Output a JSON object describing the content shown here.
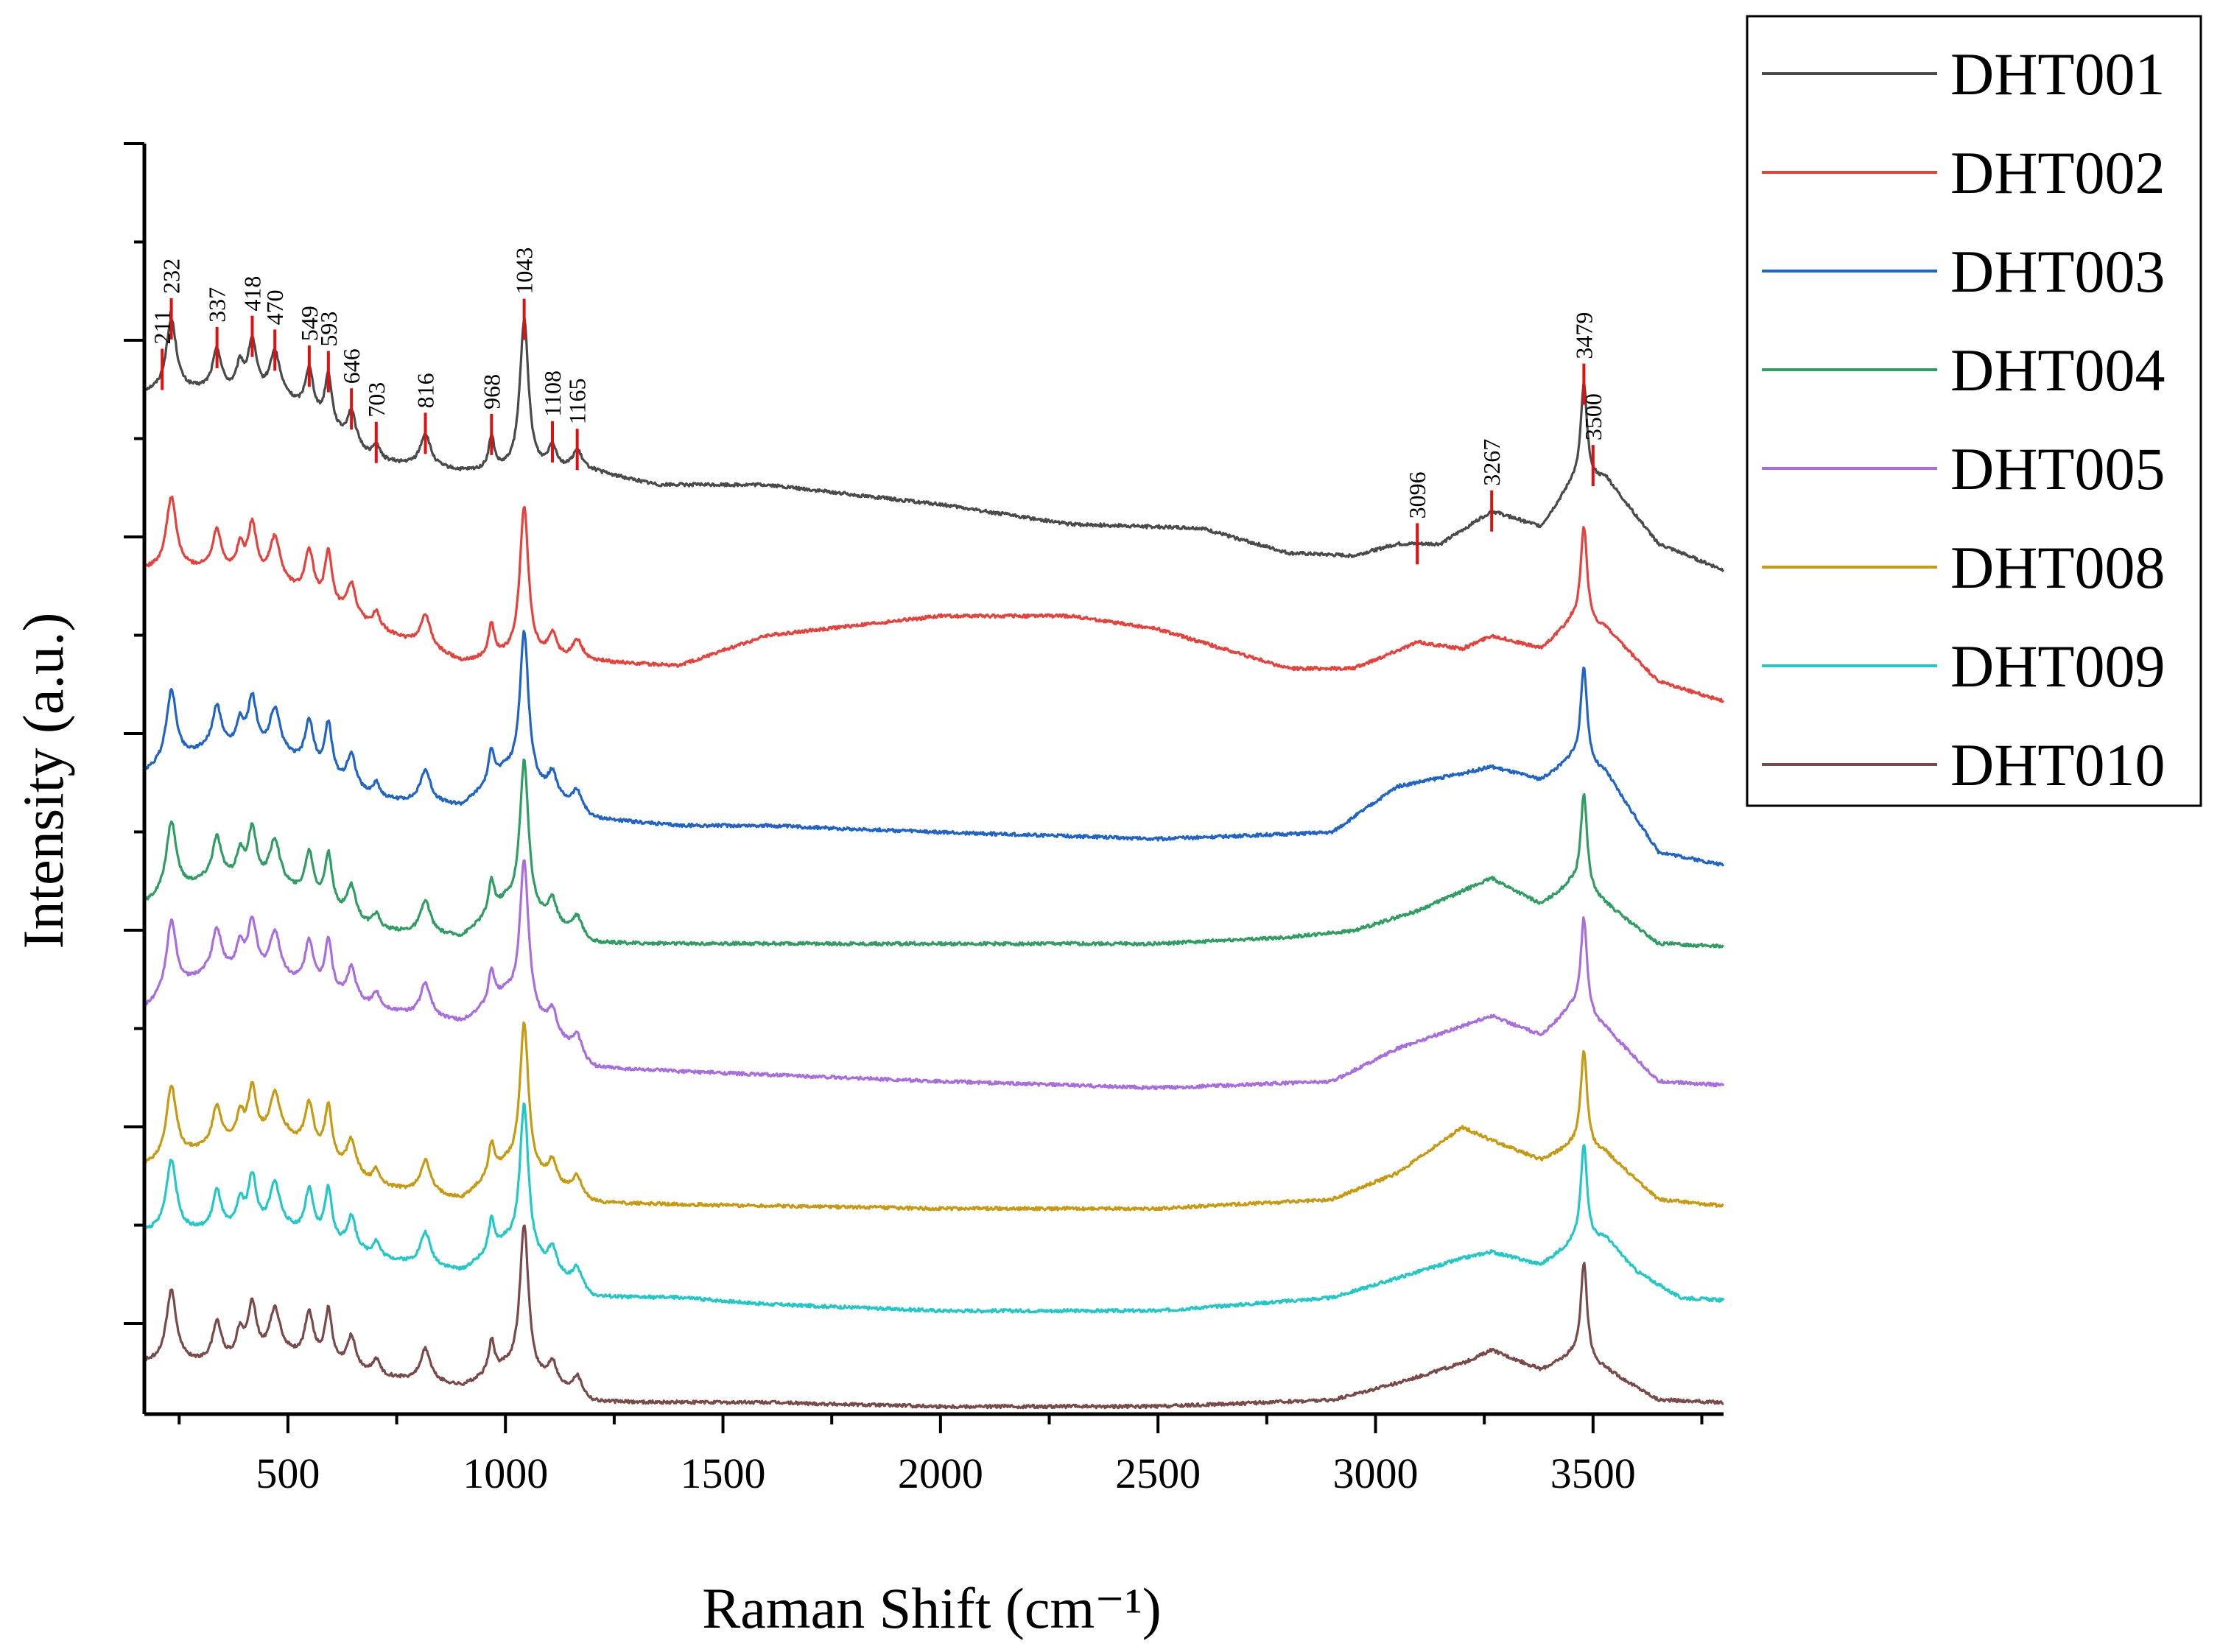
{
  "chart_data": {
    "type": "line",
    "title": "",
    "xlabel": "Raman Shift (cm⁻¹)",
    "ylabel": "Intensity (a.u.)",
    "xlim": [
      170,
      3800
    ],
    "x_ticks": [
      500,
      1000,
      1500,
      2000,
      2500,
      3000,
      3500
    ],
    "x_tick_labels": [
      "500",
      "1000",
      "1500",
      "2000",
      "2500",
      "3000",
      "3500"
    ],
    "y_ticks_shown": false,
    "grid": false,
    "legend_position": "outside-right-top",
    "series": [
      {
        "name": "DHT001",
        "color": "#4a4a4a",
        "offset": 7.3,
        "baseline": [
          [
            170,
            0.6
          ],
          [
            330,
            0.62
          ],
          [
            500,
            0.52
          ],
          [
            700,
            0.08
          ],
          [
            900,
            0.0
          ],
          [
            1200,
            0.0
          ],
          [
            1350,
            -0.1
          ],
          [
            1600,
            -0.1
          ],
          [
            2000,
            -0.25
          ],
          [
            2300,
            -0.4
          ],
          [
            2600,
            -0.43
          ],
          [
            2800,
            -0.62
          ],
          [
            2950,
            -0.64
          ],
          [
            3050,
            -0.55
          ],
          [
            3150,
            -0.55
          ],
          [
            3267,
            -0.3
          ],
          [
            3380,
            -0.42
          ],
          [
            3450,
            -0.1
          ],
          [
            3530,
            -0.05
          ],
          [
            3650,
            -0.55
          ],
          [
            3800,
            -0.75
          ]
        ]
      },
      {
        "name": "DHT002",
        "color": "#e8403a",
        "offset": 6.0,
        "baseline": [
          [
            170,
            0.55
          ],
          [
            330,
            0.55
          ],
          [
            500,
            0.4
          ],
          [
            700,
            0.1
          ],
          [
            900,
            -0.15
          ],
          [
            1000,
            -0.12
          ],
          [
            1200,
            -0.15
          ],
          [
            1400,
            -0.18
          ],
          [
            1600,
            0.05
          ],
          [
            2000,
            0.2
          ],
          [
            2300,
            0.2
          ],
          [
            2500,
            0.1
          ],
          [
            2800,
            -0.2
          ],
          [
            2950,
            -0.2
          ],
          [
            3096,
            0.0
          ],
          [
            3200,
            -0.05
          ],
          [
            3267,
            0.05
          ],
          [
            3380,
            -0.05
          ],
          [
            3450,
            0.15
          ],
          [
            3530,
            0.1
          ],
          [
            3650,
            -0.3
          ],
          [
            3800,
            -0.45
          ]
        ]
      },
      {
        "name": "DHT003",
        "color": "#1f64c8",
        "offset": 5.0,
        "baseline": [
          [
            170,
            0.0
          ],
          [
            330,
            0.2
          ],
          [
            500,
            0.1
          ],
          [
            700,
            -0.2
          ],
          [
            900,
            -0.25
          ],
          [
            1000,
            0.0
          ],
          [
            1200,
            -0.35
          ],
          [
            1400,
            -0.4
          ],
          [
            1600,
            -0.4
          ],
          [
            2000,
            -0.45
          ],
          [
            2500,
            -0.5
          ],
          [
            2900,
            -0.45
          ],
          [
            3050,
            -0.1
          ],
          [
            3200,
            0.0
          ],
          [
            3267,
            0.05
          ],
          [
            3380,
            -0.05
          ],
          [
            3450,
            0.1
          ],
          [
            3530,
            0.0
          ],
          [
            3650,
            -0.6
          ],
          [
            3800,
            -0.7
          ]
        ]
      },
      {
        "name": "DHT004",
        "color": "#2e9e62",
        "offset": 4.0,
        "baseline": [
          [
            170,
            0.0
          ],
          [
            330,
            0.2
          ],
          [
            500,
            0.1
          ],
          [
            700,
            -0.2
          ],
          [
            900,
            -0.25
          ],
          [
            1000,
            0.0
          ],
          [
            1200,
            -0.3
          ],
          [
            1600,
            -0.3
          ],
          [
            2000,
            -0.3
          ],
          [
            2500,
            -0.3
          ],
          [
            2800,
            -0.25
          ],
          [
            2950,
            -0.2
          ],
          [
            3096,
            -0.05
          ],
          [
            3267,
            0.2
          ],
          [
            3380,
            0.0
          ],
          [
            3450,
            0.15
          ],
          [
            3530,
            0.0
          ],
          [
            3650,
            -0.3
          ],
          [
            3800,
            -0.32
          ]
        ]
      },
      {
        "name": "DHT005",
        "color": "#a86ee0",
        "offset": 3.2,
        "baseline": [
          [
            170,
            0.0
          ],
          [
            330,
            0.3
          ],
          [
            500,
            0.2
          ],
          [
            700,
            0.0
          ],
          [
            900,
            -0.1
          ],
          [
            1000,
            0.1
          ],
          [
            1200,
            -0.45
          ],
          [
            1600,
            -0.5
          ],
          [
            2000,
            -0.55
          ],
          [
            2500,
            -0.6
          ],
          [
            2900,
            -0.55
          ],
          [
            3050,
            -0.3
          ],
          [
            3267,
            -0.05
          ],
          [
            3380,
            -0.2
          ],
          [
            3450,
            0.0
          ],
          [
            3530,
            -0.15
          ],
          [
            3650,
            -0.55
          ],
          [
            3800,
            -0.58
          ]
        ]
      },
      {
        "name": "DHT008",
        "color": "#c89a10",
        "offset": 2.0,
        "baseline": [
          [
            170,
            0.0
          ],
          [
            330,
            0.15
          ],
          [
            500,
            0.2
          ],
          [
            700,
            -0.15
          ],
          [
            900,
            -0.25
          ],
          [
            1000,
            0.0
          ],
          [
            1200,
            -0.28
          ],
          [
            1600,
            -0.3
          ],
          [
            2000,
            -0.32
          ],
          [
            2500,
            -0.32
          ],
          [
            2900,
            -0.25
          ],
          [
            3050,
            -0.05
          ],
          [
            3200,
            0.3
          ],
          [
            3267,
            0.2
          ],
          [
            3380,
            0.05
          ],
          [
            3450,
            0.15
          ],
          [
            3530,
            0.1
          ],
          [
            3650,
            -0.25
          ],
          [
            3800,
            -0.3
          ]
        ]
      },
      {
        "name": "DHT009",
        "color": "#22c8c8",
        "offset": 1.5,
        "baseline": [
          [
            170,
            0.0
          ],
          [
            330,
            0.0
          ],
          [
            500,
            0.0
          ],
          [
            700,
            -0.2
          ],
          [
            900,
            -0.3
          ],
          [
            1000,
            -0.1
          ],
          [
            1200,
            -0.5
          ],
          [
            1400,
            -0.5
          ],
          [
            1600,
            -0.55
          ],
          [
            2000,
            -0.6
          ],
          [
            2500,
            -0.6
          ],
          [
            2900,
            -0.5
          ],
          [
            3050,
            -0.35
          ],
          [
            3200,
            -0.2
          ],
          [
            3267,
            -0.15
          ],
          [
            3380,
            -0.25
          ],
          [
            3450,
            -0.1
          ],
          [
            3530,
            -0.05
          ],
          [
            3600,
            -0.3
          ],
          [
            3700,
            -0.5
          ],
          [
            3800,
            -0.52
          ]
        ]
      },
      {
        "name": "DHT010",
        "color": "#7a4a48",
        "offset": 0.5,
        "baseline": [
          [
            170,
            0.0
          ],
          [
            330,
            0.0
          ],
          [
            500,
            0.05
          ],
          [
            700,
            -0.1
          ],
          [
            900,
            -0.18
          ],
          [
            1000,
            -0.05
          ],
          [
            1200,
            -0.3
          ],
          [
            1600,
            -0.3
          ],
          [
            2000,
            -0.33
          ],
          [
            2500,
            -0.33
          ],
          [
            2900,
            -0.28
          ],
          [
            3050,
            -0.15
          ],
          [
            3200,
            0.0
          ],
          [
            3267,
            0.1
          ],
          [
            3380,
            -0.05
          ],
          [
            3450,
            0.05
          ],
          [
            3530,
            -0.05
          ],
          [
            3650,
            -0.28
          ],
          [
            3800,
            -0.3
          ]
        ]
      }
    ],
    "peaks_common": [
      {
        "x": 232,
        "h": 0.55,
        "w": 14
      },
      {
        "x": 337,
        "h": 0.3,
        "w": 12
      },
      {
        "x": 390,
        "h": 0.2,
        "w": 10
      },
      {
        "x": 418,
        "h": 0.4,
        "w": 12
      },
      {
        "x": 470,
        "h": 0.35,
        "w": 15
      },
      {
        "x": 549,
        "h": 0.35,
        "w": 12
      },
      {
        "x": 593,
        "h": 0.4,
        "w": 10
      },
      {
        "x": 646,
        "h": 0.25,
        "w": 12
      },
      {
        "x": 703,
        "h": 0.12,
        "w": 10
      },
      {
        "x": 816,
        "h": 0.25,
        "w": 14
      },
      {
        "x": 968,
        "h": 0.25,
        "w": 8
      },
      {
        "x": 1043,
        "h": 1.15,
        "w": 12
      },
      {
        "x": 1108,
        "h": 0.18,
        "w": 12
      },
      {
        "x": 1165,
        "h": 0.15,
        "w": 14
      },
      {
        "x": 3479,
        "h": 0.75,
        "w": 9
      }
    ],
    "peak_annotations": {
      "series": "DHT001",
      "labels": [
        "211",
        "232",
        "337",
        "418",
        "470",
        "549",
        "593",
        "646",
        "703",
        "816",
        "968",
        "1043",
        "1108",
        "1165",
        "3096",
        "3267",
        "3479",
        "3500"
      ],
      "x": [
        211,
        232,
        337,
        418,
        470,
        549,
        593,
        646,
        703,
        816,
        968,
        1043,
        1108,
        1165,
        3096,
        3267,
        3479,
        3500
      ]
    },
    "legend": [
      "DHT001",
      "DHT002",
      "DHT003",
      "DHT004",
      "DHT005",
      "DHT008",
      "DHT009",
      "DHT010"
    ]
  }
}
